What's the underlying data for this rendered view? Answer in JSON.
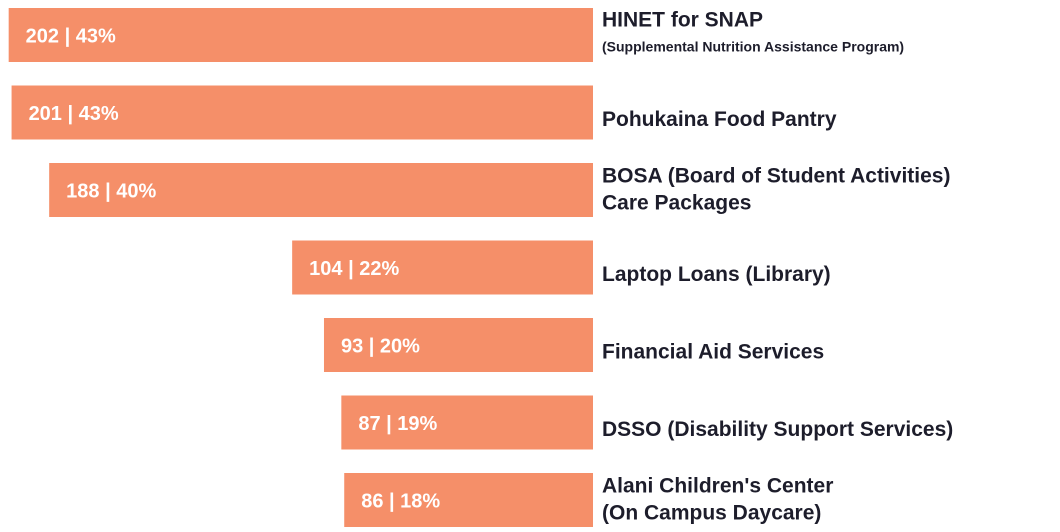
{
  "chart_data": {
    "type": "barh",
    "categories": [
      [
        "HINET for SNAP",
        "(Supplemental Nutrition Assistance Program)"
      ],
      [
        "Pohukaina Food Pantry"
      ],
      [
        "BOSA (Board of Student Activities)",
        "Care Packages"
      ],
      [
        "Laptop Loans (Library)"
      ],
      [
        "Financial Aid Services"
      ],
      [
        "DSSO (Disability Support Services)"
      ],
      [
        "Alani Children's Center",
        "(On Campus Daycare)"
      ]
    ],
    "values": [
      202,
      201,
      188,
      104,
      93,
      87,
      86
    ],
    "value_labels": [
      "202 | 43%",
      "201 | 43%",
      "188 | 40%",
      "104 | 22%",
      "93 | 20%",
      "87 | 19%",
      "86 | 18%"
    ],
    "color": "#f58f69",
    "xlim": [
      0,
      205
    ]
  }
}
